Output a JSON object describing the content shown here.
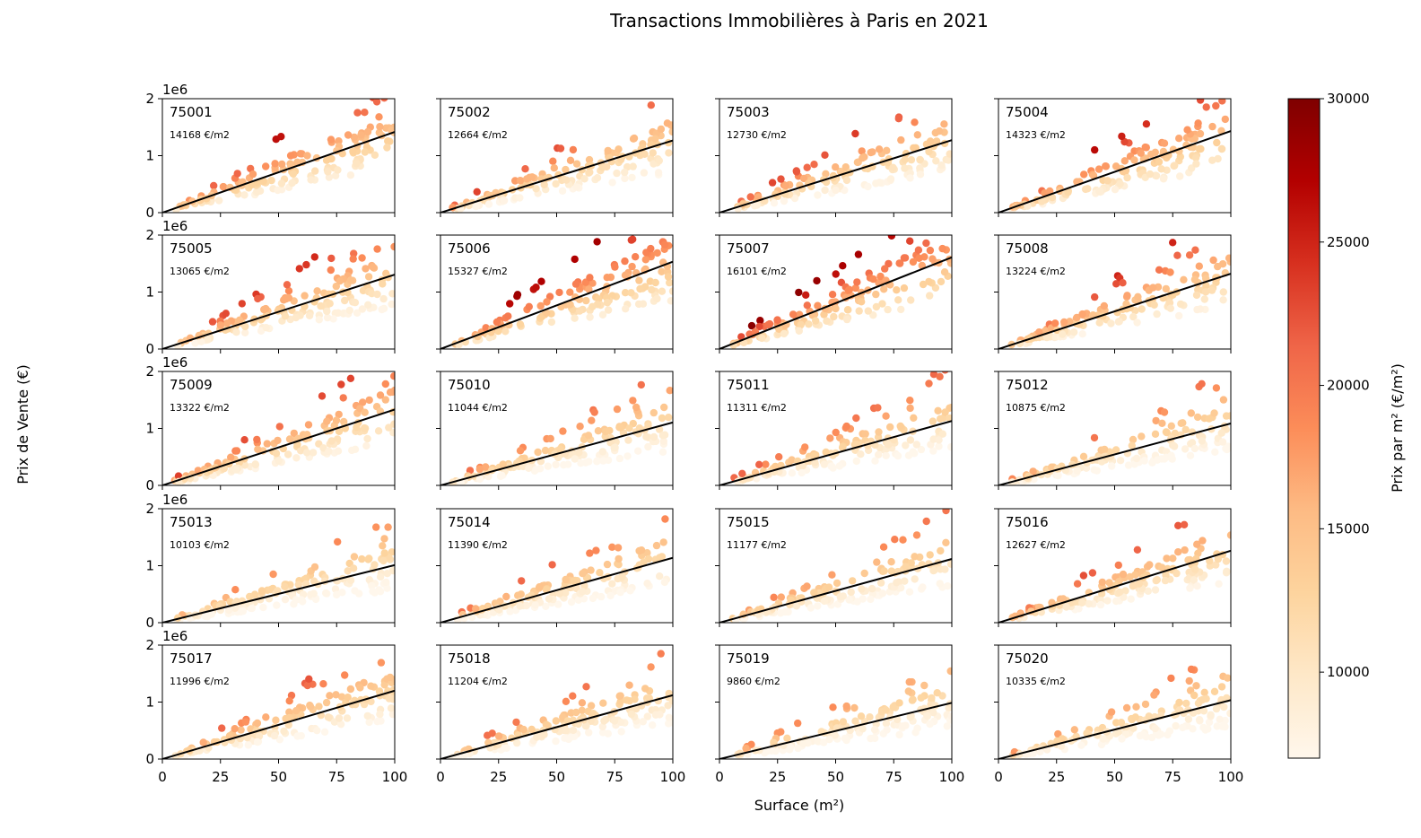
{
  "figure": {
    "title": "Transactions Immobilières à Paris en 2021",
    "xlabel": "Surface (m²)",
    "ylabel": "Prix de Vente (€)",
    "y_offset_label": "1e6"
  },
  "colorbar": {
    "label": "Prix par m² (€/m²)",
    "ticks": [
      "10000",
      "15000",
      "20000",
      "25000",
      "30000"
    ],
    "range": [
      7000,
      30000
    ],
    "colormap": "OrRd",
    "colors": [
      "#fff7ec",
      "#fee8c8",
      "#fdd49e",
      "#fdbb84",
      "#fc8d59",
      "#ef6548",
      "#d7301f",
      "#b30000",
      "#7f0000"
    ]
  },
  "chart_data": {
    "type": "scatter",
    "subplot_grid": [
      5,
      4
    ],
    "xlim": [
      0,
      100
    ],
    "ylim": [
      0,
      2000000
    ],
    "x_ticks": [
      "0",
      "25",
      "50",
      "75",
      "100"
    ],
    "y_ticks": [
      "0",
      "1",
      "2"
    ],
    "fit_line_color": "#000000",
    "panels": [
      {
        "code": "75001",
        "avg_label": "14168 €/m2",
        "avg": 14168
      },
      {
        "code": "75002",
        "avg_label": "12664 €/m2",
        "avg": 12664
      },
      {
        "code": "75003",
        "avg_label": "12730 €/m2",
        "avg": 12730
      },
      {
        "code": "75004",
        "avg_label": "14323 €/m2",
        "avg": 14323
      },
      {
        "code": "75005",
        "avg_label": "13065 €/m2",
        "avg": 13065
      },
      {
        "code": "75006",
        "avg_label": "15327 €/m2",
        "avg": 15327
      },
      {
        "code": "75007",
        "avg_label": "16101 €/m2",
        "avg": 16101
      },
      {
        "code": "75008",
        "avg_label": "13224 €/m2",
        "avg": 13224
      },
      {
        "code": "75009",
        "avg_label": "13322 €/m2",
        "avg": 13322
      },
      {
        "code": "75010",
        "avg_label": "11044 €/m2",
        "avg": 11044
      },
      {
        "code": "75011",
        "avg_label": "11311 €/m2",
        "avg": 11311
      },
      {
        "code": "75012",
        "avg_label": "10875 €/m2",
        "avg": 10875
      },
      {
        "code": "75013",
        "avg_label": "10103 €/m2",
        "avg": 10103
      },
      {
        "code": "75014",
        "avg_label": "11390 €/m2",
        "avg": 11390
      },
      {
        "code": "75015",
        "avg_label": "11177 €/m2",
        "avg": 11177
      },
      {
        "code": "75016",
        "avg_label": "12627 €/m2",
        "avg": 12627
      },
      {
        "code": "75017",
        "avg_label": "11996 €/m2",
        "avg": 11996
      },
      {
        "code": "75018",
        "avg_label": "11204 €/m2",
        "avg": 11204
      },
      {
        "code": "75019",
        "avg_label": "9860 €/m2",
        "avg": 9860
      },
      {
        "code": "75020",
        "avg_label": "10335 €/m2",
        "avg": 10335
      }
    ]
  }
}
